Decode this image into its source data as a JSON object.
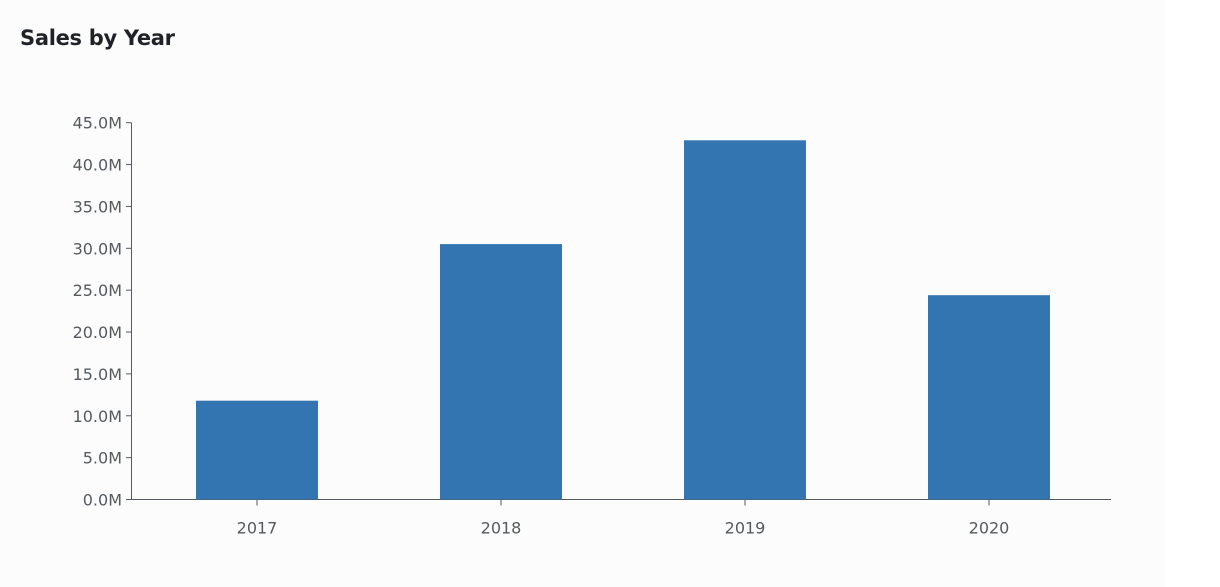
{
  "chart_data": {
    "type": "bar",
    "title": "Sales by Year",
    "xlabel": "",
    "ylabel": "",
    "categories": [
      "2017",
      "2018",
      "2019",
      "2020"
    ],
    "values": [
      11.8,
      30.5,
      42.9,
      24.4
    ],
    "value_unit": "M",
    "ylim": [
      0,
      45
    ],
    "yticks": [
      "0.0M",
      "5.0M",
      "10.0M",
      "15.0M",
      "20.0M",
      "25.0M",
      "30.0M",
      "35.0M",
      "40.0M",
      "45.0M"
    ],
    "grid": false,
    "legend": "none",
    "bar_color": "#3375b0"
  }
}
